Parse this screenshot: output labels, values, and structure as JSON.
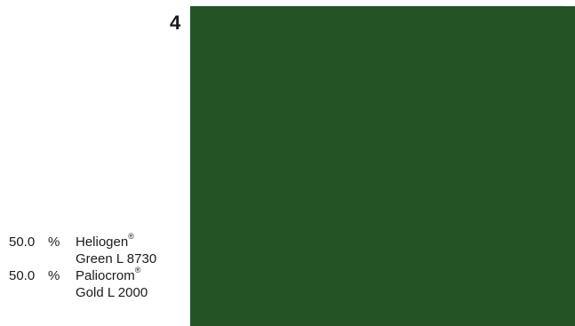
{
  "swatch": {
    "number": "4",
    "color": "#245326"
  },
  "recipe": [
    {
      "percent": "50.0",
      "unit": "%",
      "name": "Heliogen",
      "mark": "®",
      "detail": "Green L 8730"
    },
    {
      "percent": "50.0",
      "unit": "%",
      "name": "Paliocrom",
      "mark": "®",
      "detail": "Gold L 2000"
    }
  ]
}
